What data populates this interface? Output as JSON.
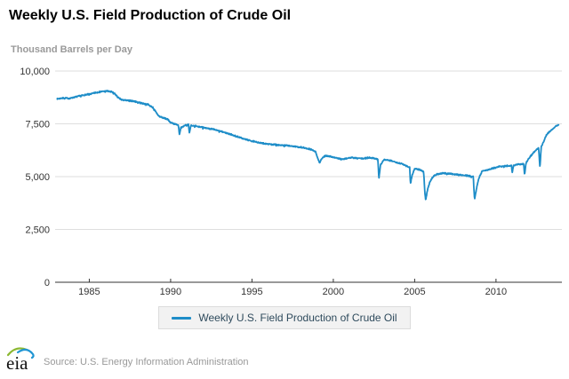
{
  "header": {
    "title": "Weekly U.S. Field Production of Crude Oil",
    "subtitle": "Thousand Barrels per Day"
  },
  "legend": {
    "label": "Weekly U.S. Field Production of Crude Oil"
  },
  "footer": {
    "logo_text": "eia",
    "source_text": "Source: U.S. Energy Information Administration"
  },
  "colors": {
    "line": "#1e8dc8",
    "grid": "#dedede",
    "axis": "#333333",
    "tick_label": "#333333",
    "title": "#000000",
    "subtitle": "#9a9a9a",
    "legend_text": "#2e4a5c",
    "legend_bg": "#f2f2f2",
    "legend_border": "#dcdcdc",
    "source_text": "#999999",
    "logo_green": "#8cb832",
    "logo_blue": "#2196d3",
    "logo_text_color": "#111111"
  },
  "chart_data": {
    "type": "line",
    "title": "Weekly U.S. Field Production of Crude Oil",
    "ylabel": "Thousand Barrels per Day",
    "frequency": "weekly",
    "grid": "horizontal",
    "legend_position": "bottom",
    "xlim": [
      1982.9,
      2014.05
    ],
    "ylim": [
      0,
      10000
    ],
    "yticks": [
      {
        "value": 0,
        "label": "0"
      },
      {
        "value": 2500,
        "label": "2,500"
      },
      {
        "value": 5000,
        "label": "5,000"
      },
      {
        "value": 7500,
        "label": "7,500"
      },
      {
        "value": 10000,
        "label": "10,000"
      }
    ],
    "xticks": [
      {
        "value": 1985,
        "label": "1985"
      },
      {
        "value": 1990,
        "label": "1990"
      },
      {
        "value": 1995,
        "label": "1995"
      },
      {
        "value": 2000,
        "label": "2000"
      },
      {
        "value": 2005,
        "label": "2005"
      },
      {
        "value": 2010,
        "label": "2010"
      }
    ],
    "series": [
      {
        "name": "Weekly U.S. Field Production of Crude Oil",
        "x_start": 1983.0,
        "x_end": 2013.88,
        "noise_amplitude": 26,
        "control_points": [
          [
            1983.0,
            8680
          ],
          [
            1983.4,
            8720
          ],
          [
            1983.8,
            8700
          ],
          [
            1984.2,
            8780
          ],
          [
            1984.6,
            8850
          ],
          [
            1985.0,
            8900
          ],
          [
            1985.4,
            8980
          ],
          [
            1985.8,
            9030
          ],
          [
            1986.1,
            9050
          ],
          [
            1986.4,
            9000
          ],
          [
            1986.6,
            8900
          ],
          [
            1986.8,
            8720
          ],
          [
            1987.0,
            8640
          ],
          [
            1987.4,
            8600
          ],
          [
            1987.8,
            8560
          ],
          [
            1988.2,
            8480
          ],
          [
            1988.6,
            8420
          ],
          [
            1988.9,
            8280
          ],
          [
            1989.1,
            8050
          ],
          [
            1989.3,
            7850
          ],
          [
            1989.5,
            7800
          ],
          [
            1989.8,
            7720
          ],
          [
            1990.0,
            7560
          ],
          [
            1990.3,
            7480
          ],
          [
            1990.48,
            7420
          ],
          [
            1990.54,
            6960
          ],
          [
            1990.62,
            7300
          ],
          [
            1990.9,
            7440
          ],
          [
            1991.1,
            7460
          ],
          [
            1991.15,
            7060
          ],
          [
            1991.25,
            7420
          ],
          [
            1991.6,
            7400
          ],
          [
            1992.0,
            7320
          ],
          [
            1992.5,
            7260
          ],
          [
            1993.0,
            7160
          ],
          [
            1993.5,
            7050
          ],
          [
            1994.0,
            6920
          ],
          [
            1994.5,
            6790
          ],
          [
            1995.0,
            6680
          ],
          [
            1995.5,
            6600
          ],
          [
            1996.0,
            6540
          ],
          [
            1996.5,
            6510
          ],
          [
            1997.0,
            6480
          ],
          [
            1997.5,
            6440
          ],
          [
            1998.0,
            6390
          ],
          [
            1998.5,
            6320
          ],
          [
            1998.9,
            6180
          ],
          [
            1999.05,
            5850
          ],
          [
            1999.15,
            5660
          ],
          [
            1999.3,
            5850
          ],
          [
            1999.5,
            6000
          ],
          [
            1999.8,
            5960
          ],
          [
            2000.2,
            5880
          ],
          [
            2000.6,
            5820
          ],
          [
            2001.0,
            5900
          ],
          [
            2001.4,
            5880
          ],
          [
            2001.8,
            5860
          ],
          [
            2002.2,
            5900
          ],
          [
            2002.5,
            5870
          ],
          [
            2002.74,
            5820
          ],
          [
            2002.8,
            4900
          ],
          [
            2002.9,
            5550
          ],
          [
            2003.1,
            5800
          ],
          [
            2003.5,
            5760
          ],
          [
            2003.9,
            5680
          ],
          [
            2004.3,
            5580
          ],
          [
            2004.6,
            5480
          ],
          [
            2004.7,
            5430
          ],
          [
            2004.74,
            4660
          ],
          [
            2004.85,
            5080
          ],
          [
            2005.0,
            5380
          ],
          [
            2005.3,
            5330
          ],
          [
            2005.55,
            5250
          ],
          [
            2005.63,
            4200
          ],
          [
            2005.68,
            3890
          ],
          [
            2005.8,
            4420
          ],
          [
            2005.95,
            4780
          ],
          [
            2006.15,
            5020
          ],
          [
            2006.4,
            5120
          ],
          [
            2006.8,
            5160
          ],
          [
            2007.2,
            5140
          ],
          [
            2007.6,
            5100
          ],
          [
            2008.0,
            5060
          ],
          [
            2008.3,
            5040
          ],
          [
            2008.6,
            5010
          ],
          [
            2008.68,
            3920
          ],
          [
            2008.78,
            4350
          ],
          [
            2008.95,
            4950
          ],
          [
            2009.15,
            5260
          ],
          [
            2009.5,
            5330
          ],
          [
            2009.85,
            5400
          ],
          [
            2010.2,
            5480
          ],
          [
            2010.6,
            5500
          ],
          [
            2010.95,
            5530
          ],
          [
            2011.0,
            5200
          ],
          [
            2011.08,
            5540
          ],
          [
            2011.4,
            5580
          ],
          [
            2011.7,
            5600
          ],
          [
            2011.76,
            5060
          ],
          [
            2011.84,
            5640
          ],
          [
            2012.0,
            5840
          ],
          [
            2012.2,
            6040
          ],
          [
            2012.45,
            6250
          ],
          [
            2012.62,
            6360
          ],
          [
            2012.7,
            5420
          ],
          [
            2012.78,
            6420
          ],
          [
            2012.95,
            6700
          ],
          [
            2013.1,
            6980
          ],
          [
            2013.3,
            7130
          ],
          [
            2013.5,
            7280
          ],
          [
            2013.7,
            7400
          ],
          [
            2013.88,
            7470
          ]
        ]
      }
    ]
  }
}
